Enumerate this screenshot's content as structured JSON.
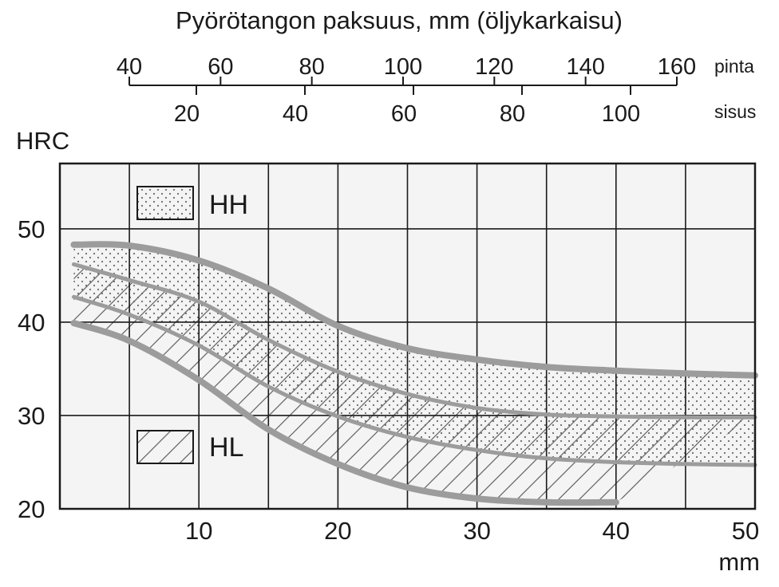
{
  "chart_data": {
    "type": "area",
    "title": "Pyörötangon paksuus, mm (öljykarkaisu)",
    "ylabel": "HRC",
    "xunit": "mm",
    "xlim": [
      0,
      50
    ],
    "ylim": [
      20,
      57
    ],
    "x_ticks": [
      10,
      20,
      30,
      40,
      50
    ],
    "y_ticks": [
      20,
      30,
      40,
      50
    ],
    "grid": true,
    "top_axes": [
      {
        "label": "pinta",
        "ticks": [
          40,
          60,
          80,
          100,
          120,
          140,
          160
        ]
      },
      {
        "label": "sisus",
        "ticks": [
          20,
          40,
          60,
          80,
          100
        ]
      }
    ],
    "legend": [
      {
        "name": "HH",
        "pattern": "dots"
      },
      {
        "name": "HL",
        "pattern": "hatch"
      }
    ],
    "bands": [
      {
        "name": "HH",
        "upper": {
          "x": [
            1,
            5,
            10,
            15,
            20,
            25,
            30,
            35,
            40,
            45,
            50
          ],
          "y": [
            48.3,
            48.2,
            46.6,
            43.6,
            39.6,
            37.2,
            36.0,
            35.2,
            34.8,
            34.5,
            34.3
          ]
        },
        "lower": {
          "x": [
            1,
            5,
            10,
            15,
            20,
            25,
            30,
            35,
            40,
            45,
            50
          ],
          "y": [
            42.7,
            40.8,
            37.5,
            33.1,
            29.9,
            27.7,
            26.3,
            25.4,
            25.0,
            24.8,
            24.7
          ]
        }
      },
      {
        "name": "HL",
        "upper": {
          "x": [
            1,
            5,
            10,
            15,
            20,
            25,
            30,
            35,
            40,
            45,
            50
          ],
          "y": [
            46.2,
            44.5,
            42.2,
            38.1,
            34.7,
            32.3,
            30.8,
            30.1,
            29.9,
            29.8,
            29.8
          ]
        },
        "lower": {
          "x": [
            1,
            5,
            10,
            15,
            20,
            25,
            30,
            35,
            40
          ],
          "y": [
            39.9,
            38.0,
            33.8,
            28.5,
            24.8,
            22.3,
            21.1,
            20.7,
            20.7
          ]
        }
      }
    ]
  }
}
